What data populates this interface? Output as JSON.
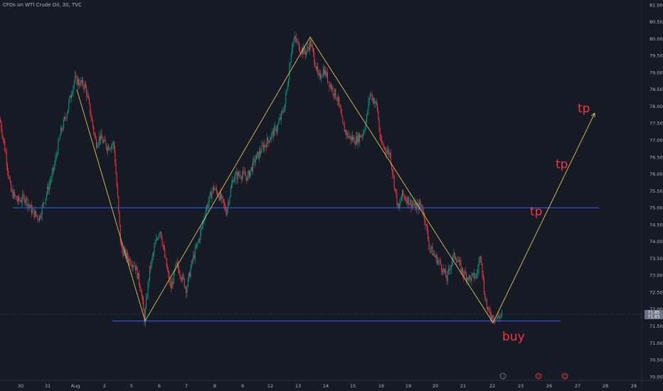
{
  "header": {
    "symbol_title": "CFDs on WTI Crude Oil, 30, TVC"
  },
  "colors": {
    "background": "#161a25",
    "up_candle": "#089981",
    "down_candle": "#f23645",
    "wave_line": "#e0c45c",
    "level_line": "#2962ff",
    "annotation": "#f23645",
    "axis_text": "#b2b5be",
    "price_badge": "#6c7286"
  },
  "chart_data": {
    "type": "candlestick",
    "y_axis": {
      "ticks": [
        "81.00",
        "80.50",
        "80.00",
        "79.50",
        "79.00",
        "78.50",
        "78.00",
        "77.50",
        "77.00",
        "76.50",
        "76.00",
        "75.50",
        "75.00",
        "74.50",
        "74.00",
        "73.50",
        "73.00",
        "72.50",
        "72.00",
        "71.50",
        "71.00",
        "70.50",
        "70.00"
      ],
      "ylim": [
        70.0,
        81.0
      ],
      "last_price_label": "71.85",
      "last_price_sublabel": "71.83"
    },
    "x_axis": {
      "ticks": [
        "30",
        "31",
        "Aug",
        "2",
        "5",
        "6",
        "7",
        "8",
        "9",
        "12",
        "13",
        "14",
        "15",
        "16",
        "19",
        "20",
        "21",
        "22",
        "23",
        "26",
        "27",
        "28",
        "29"
      ]
    },
    "series": [
      {
        "type": "candles",
        "path": [
          [
            0,
            77.6
          ],
          [
            8,
            76.6
          ],
          [
            15,
            75.5
          ],
          [
            25,
            75.2
          ],
          [
            35,
            75.3
          ],
          [
            45,
            74.9
          ],
          [
            55,
            74.7
          ],
          [
            65,
            75.4
          ],
          [
            75,
            76.1
          ],
          [
            85,
            77.2
          ],
          [
            95,
            77.9
          ],
          [
            100,
            78.4
          ],
          [
            105,
            78.8
          ],
          [
            112,
            78.7
          ],
          [
            120,
            78.6
          ],
          [
            128,
            77.7
          ],
          [
            135,
            76.9
          ],
          [
            140,
            77.1
          ],
          [
            150,
            76.8
          ],
          [
            160,
            76.9
          ],
          [
            165,
            75.4
          ],
          [
            170,
            73.8
          ],
          [
            180,
            73.5
          ],
          [
            190,
            73.3
          ],
          [
            198,
            72.6
          ],
          [
            203,
            71.7
          ],
          [
            210,
            73.1
          ],
          [
            218,
            73.9
          ],
          [
            225,
            74.4
          ],
          [
            232,
            73.5
          ],
          [
            240,
            72.6
          ],
          [
            248,
            73.3
          ],
          [
            255,
            73.0
          ],
          [
            262,
            72.6
          ],
          [
            270,
            73.4
          ],
          [
            280,
            74.1
          ],
          [
            290,
            75.0
          ],
          [
            300,
            75.6
          ],
          [
            310,
            75.3
          ],
          [
            318,
            74.9
          ],
          [
            328,
            75.9
          ],
          [
            338,
            76.0
          ],
          [
            348,
            75.9
          ],
          [
            358,
            76.4
          ],
          [
            370,
            76.8
          ],
          [
            380,
            77.1
          ],
          [
            390,
            77.4
          ],
          [
            400,
            78.0
          ],
          [
            405,
            78.8
          ],
          [
            410,
            79.8
          ],
          [
            415,
            80.0
          ],
          [
            422,
            79.7
          ],
          [
            430,
            79.6
          ],
          [
            436,
            79.9
          ],
          [
            442,
            79.4
          ],
          [
            448,
            78.8
          ],
          [
            455,
            79.1
          ],
          [
            465,
            78.6
          ],
          [
            475,
            78.2
          ],
          [
            482,
            77.4
          ],
          [
            490,
            77.1
          ],
          [
            500,
            77.0
          ],
          [
            510,
            77.2
          ],
          [
            515,
            77.6
          ],
          [
            520,
            78.4
          ],
          [
            525,
            78.2
          ],
          [
            530,
            78.0
          ],
          [
            535,
            76.9
          ],
          [
            548,
            76.6
          ],
          [
            555,
            75.6
          ],
          [
            560,
            74.9
          ],
          [
            565,
            75.4
          ],
          [
            575,
            75.2
          ],
          [
            585,
            75.0
          ],
          [
            592,
            75.1
          ],
          [
            598,
            74.6
          ],
          [
            603,
            73.9
          ],
          [
            610,
            73.6
          ],
          [
            620,
            73.3
          ],
          [
            628,
            72.9
          ],
          [
            636,
            73.5
          ],
          [
            640,
            73.6
          ],
          [
            650,
            73.1
          ],
          [
            660,
            72.9
          ],
          [
            670,
            73.0
          ],
          [
            676,
            73.7
          ],
          [
            680,
            72.6
          ],
          [
            686,
            71.9
          ],
          [
            692,
            71.8
          ],
          [
            697,
            71.7
          ],
          [
            702,
            71.8
          ],
          [
            706,
            71.85
          ]
        ]
      },
      {
        "type": "wave",
        "points": [
          {
            "x_rel": 108,
            "y": 78.5
          },
          {
            "x_rel": 204,
            "y": 71.65
          },
          {
            "x_rel": 436,
            "y": 80.05
          },
          {
            "x_rel": 693,
            "y": 71.6
          },
          {
            "x_rel": 836,
            "y": 77.8
          }
        ]
      },
      {
        "type": "level",
        "y": 75.0,
        "x_rel_start": 18,
        "x_rel_end": 842
      },
      {
        "type": "level",
        "y": 71.65,
        "x_rel_start": 158,
        "x_rel_end": 788
      }
    ],
    "annotations": [
      {
        "text": "buy",
        "x_rel": 706,
        "y": 71.2
      },
      {
        "text": "tp",
        "x_rel": 745,
        "y": 74.9
      },
      {
        "text": "tp",
        "x_rel": 781,
        "y": 76.3
      },
      {
        "text": "tp",
        "x_rel": 812,
        "y": 77.95
      }
    ]
  }
}
